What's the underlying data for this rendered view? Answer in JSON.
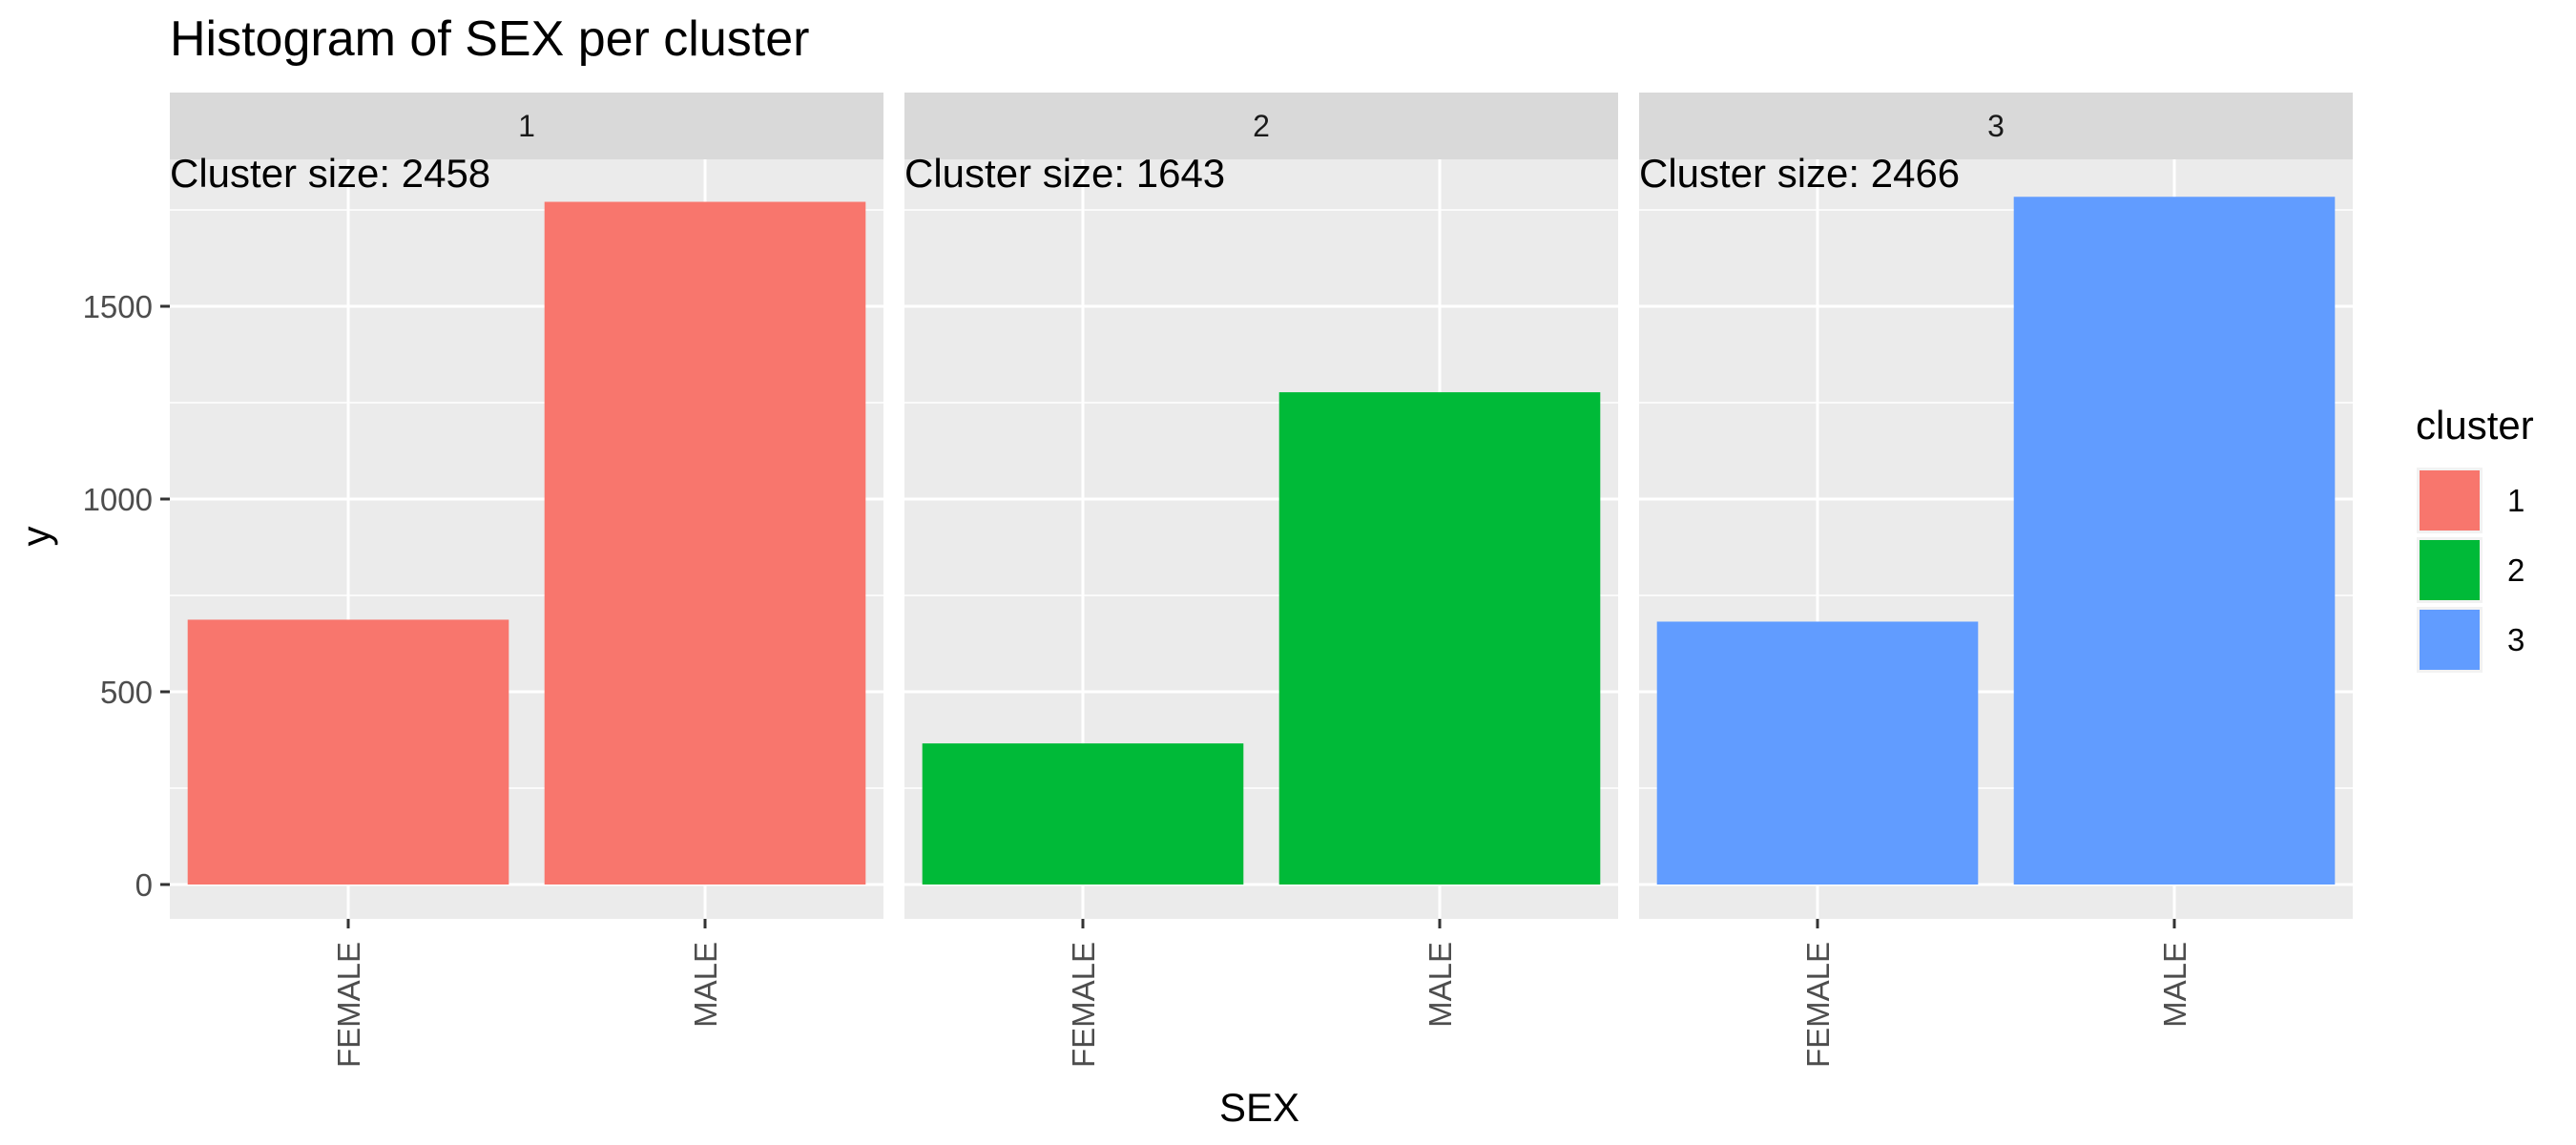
{
  "chart_data": {
    "type": "bar",
    "title": "Histogram of SEX per cluster",
    "xlabel": "SEX",
    "ylabel": "y",
    "categories": [
      "FEMALE",
      "MALE"
    ],
    "ylim": [
      0,
      1870
    ],
    "yticks": [
      0,
      500,
      1000,
      1500
    ],
    "grid": true,
    "legend": {
      "title": "cluster",
      "position": "right",
      "entries": [
        {
          "label": "1",
          "color": "#F8766D"
        },
        {
          "label": "2",
          "color": "#00BA38"
        },
        {
          "label": "3",
          "color": "#619CFF"
        }
      ]
    },
    "facets": [
      {
        "strip": "1",
        "annotation": "Cluster size: 2458",
        "color": "#F8766D",
        "values": [
          687,
          1771
        ]
      },
      {
        "strip": "2",
        "annotation": "Cluster size: 1643",
        "color": "#00BA38",
        "values": [
          366,
          1277
        ]
      },
      {
        "strip": "3",
        "annotation": "Cluster size: 2466",
        "color": "#619CFF",
        "values": [
          682,
          1784
        ]
      }
    ]
  },
  "colors": {
    "panel_background": "#EBEBEB",
    "strip_background": "#D9D9D9",
    "grid_major": "#FFFFFF",
    "axis_text": "#4D4D4D",
    "text": "#000000"
  }
}
